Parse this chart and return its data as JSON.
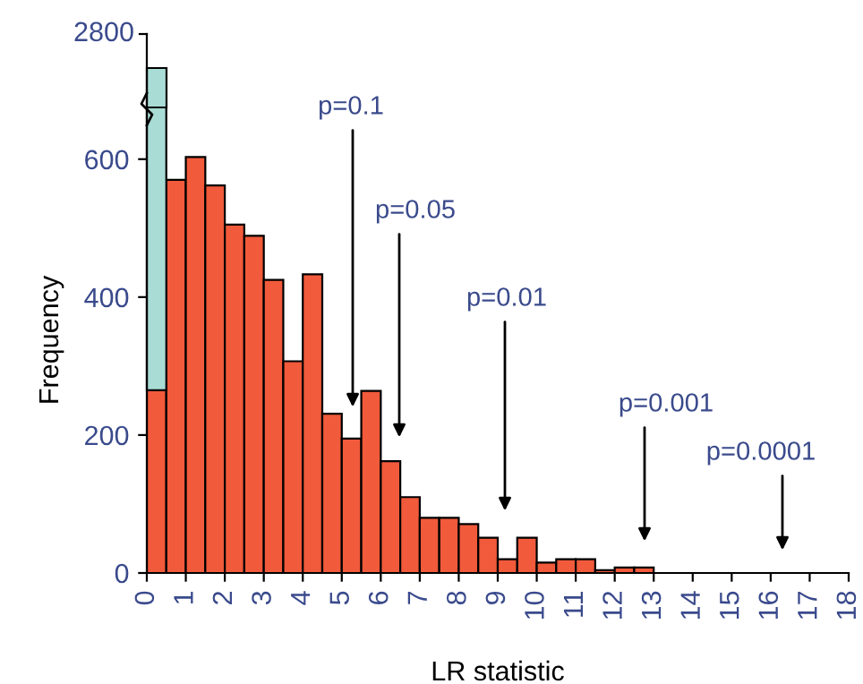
{
  "chart_data": {
    "type": "histogram",
    "xlabel": "LR statistic",
    "ylabel": "Frequency",
    "bins": [
      0,
      0.5,
      1,
      1.5,
      2,
      2.5,
      3,
      3.5,
      4,
      4.5,
      5,
      5.5,
      6,
      6.5,
      7,
      7.5,
      8,
      8.5,
      9,
      9.5,
      10,
      10.5,
      11,
      11.5,
      12,
      12.5,
      13,
      13.5,
      14,
      14.5,
      15,
      15.5,
      16,
      16.5,
      17,
      17.5,
      18
    ],
    "values": [
      265,
      570,
      603,
      562,
      505,
      489,
      425,
      307,
      433,
      231,
      195,
      264,
      162,
      110,
      80,
      80,
      71,
      51,
      20,
      51,
      15,
      20,
      20,
      4,
      8,
      8,
      null,
      null,
      null,
      0,
      null,
      0,
      0,
      0,
      0,
      0
    ],
    "color": "#f15a3b",
    "xlim": [
      0,
      18
    ],
    "xticks": [
      0,
      1,
      2,
      3,
      4,
      5,
      6,
      7,
      8,
      9,
      10,
      11,
      12,
      13,
      14,
      15,
      16,
      17,
      18
    ],
    "ylim": [
      0,
      675
    ],
    "yticks": [
      0,
      200,
      400,
      600
    ],
    "annotations": [
      "2800",
      "p=0.1",
      "p=0.05",
      "p=0.01",
      "p=0.001",
      "p=0.0001"
    ]
  }
}
